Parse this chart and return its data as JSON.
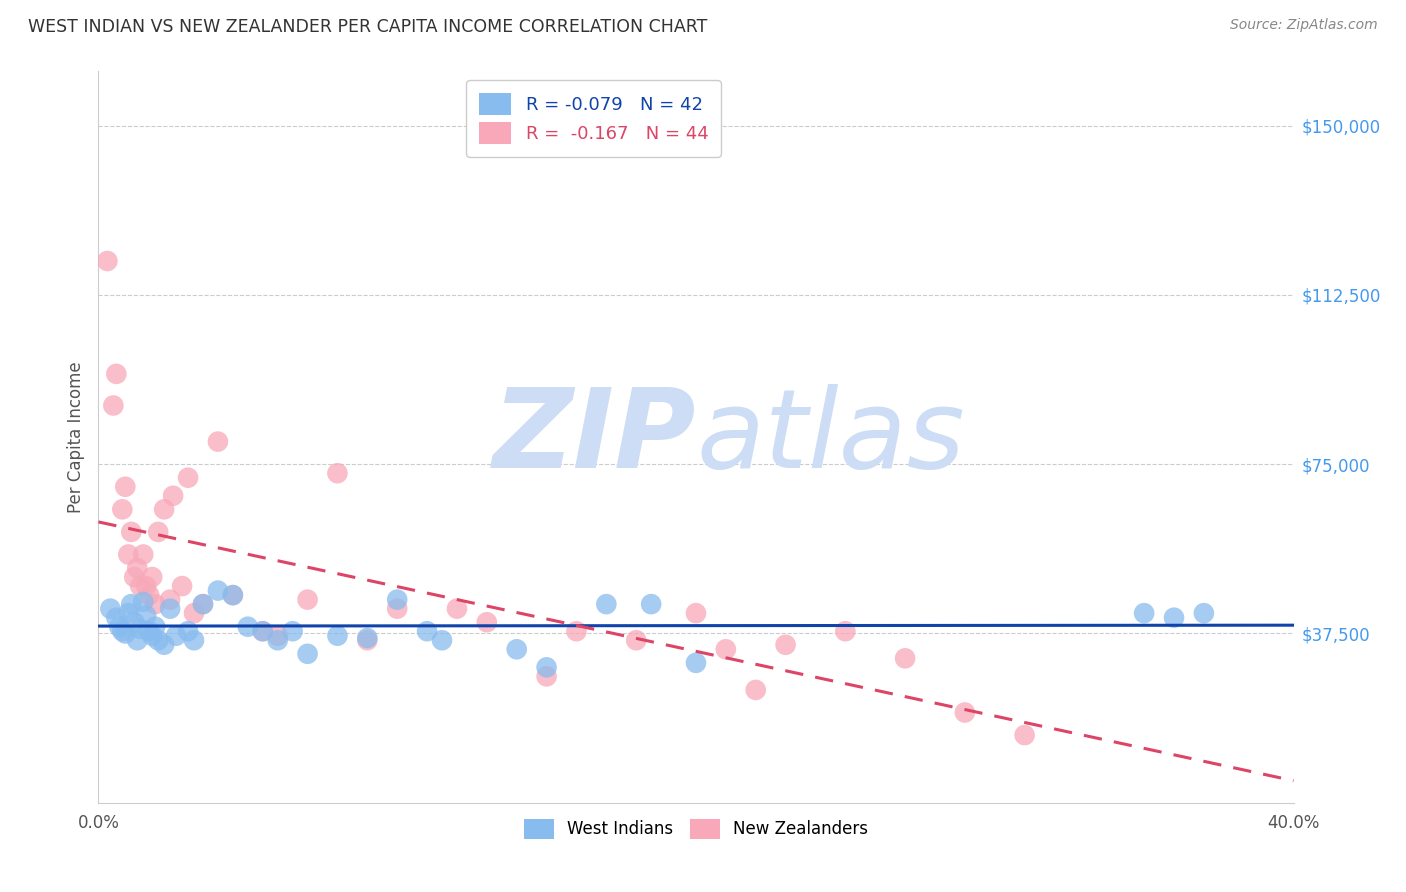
{
  "title": "WEST INDIAN VS NEW ZEALANDER PER CAPITA INCOME CORRELATION CHART",
  "source": "Source: ZipAtlas.com",
  "ylabel": "Per Capita Income",
  "x_min": 0.0,
  "x_max": 0.4,
  "y_min": 0,
  "y_max": 162000,
  "y_ticks": [
    37500,
    75000,
    112500,
    150000
  ],
  "y_tick_labels": [
    "$37,500",
    "$75,000",
    "$112,500",
    "$150,000"
  ],
  "x_ticks": [
    0.0,
    0.1,
    0.2,
    0.3,
    0.4
  ],
  "x_tick_labels": [
    "0.0%",
    "",
    "",
    "",
    "40.0%"
  ],
  "background_color": "#ffffff",
  "grid_color": "#cccccc",
  "west_indians_color": "#88bbee",
  "new_zealanders_color": "#f8a8b8",
  "west_indians_line_color": "#1144aa",
  "new_zealanders_line_color": "#dd4466",
  "legend_r_wi": "-0.079",
  "legend_n_wi": "42",
  "legend_r_nz": "-0.167",
  "legend_n_nz": "44",
  "watermark_zip": "ZIP",
  "watermark_atlas": "atlas",
  "watermark_color": "#ccddf5",
  "title_color": "#333333",
  "axis_label_color": "#555555",
  "tick_color_right": "#4499ee",
  "west_indians_x": [
    0.004,
    0.006,
    0.007,
    0.008,
    0.009,
    0.01,
    0.011,
    0.012,
    0.013,
    0.014,
    0.015,
    0.016,
    0.017,
    0.018,
    0.019,
    0.02,
    0.022,
    0.024,
    0.026,
    0.03,
    0.032,
    0.035,
    0.04,
    0.045,
    0.05,
    0.055,
    0.06,
    0.065,
    0.07,
    0.08,
    0.09,
    0.1,
    0.11,
    0.115,
    0.14,
    0.15,
    0.17,
    0.185,
    0.2,
    0.35,
    0.36,
    0.37
  ],
  "west_indians_y": [
    43000,
    41000,
    39000,
    38000,
    37500,
    42000,
    44000,
    40000,
    36000,
    38500,
    44500,
    41500,
    38000,
    37000,
    39000,
    36000,
    35000,
    43000,
    37000,
    38000,
    36000,
    44000,
    47000,
    46000,
    39000,
    38000,
    36000,
    38000,
    33000,
    37000,
    36500,
    45000,
    38000,
    36000,
    34000,
    30000,
    44000,
    44000,
    31000,
    42000,
    41000,
    42000
  ],
  "new_zealanders_x": [
    0.003,
    0.005,
    0.006,
    0.008,
    0.009,
    0.01,
    0.011,
    0.012,
    0.013,
    0.014,
    0.015,
    0.016,
    0.017,
    0.018,
    0.019,
    0.02,
    0.022,
    0.024,
    0.025,
    0.028,
    0.03,
    0.032,
    0.035,
    0.04,
    0.045,
    0.055,
    0.06,
    0.07,
    0.08,
    0.09,
    0.1,
    0.12,
    0.13,
    0.15,
    0.16,
    0.18,
    0.2,
    0.21,
    0.22,
    0.23,
    0.25,
    0.27,
    0.29,
    0.31
  ],
  "new_zealanders_y": [
    120000,
    88000,
    95000,
    65000,
    70000,
    55000,
    60000,
    50000,
    52000,
    48000,
    55000,
    48000,
    46000,
    50000,
    44000,
    60000,
    65000,
    45000,
    68000,
    48000,
    72000,
    42000,
    44000,
    80000,
    46000,
    38000,
    37000,
    45000,
    73000,
    36000,
    43000,
    43000,
    40000,
    28000,
    38000,
    36000,
    42000,
    34000,
    25000,
    35000,
    38000,
    32000,
    20000,
    15000
  ]
}
